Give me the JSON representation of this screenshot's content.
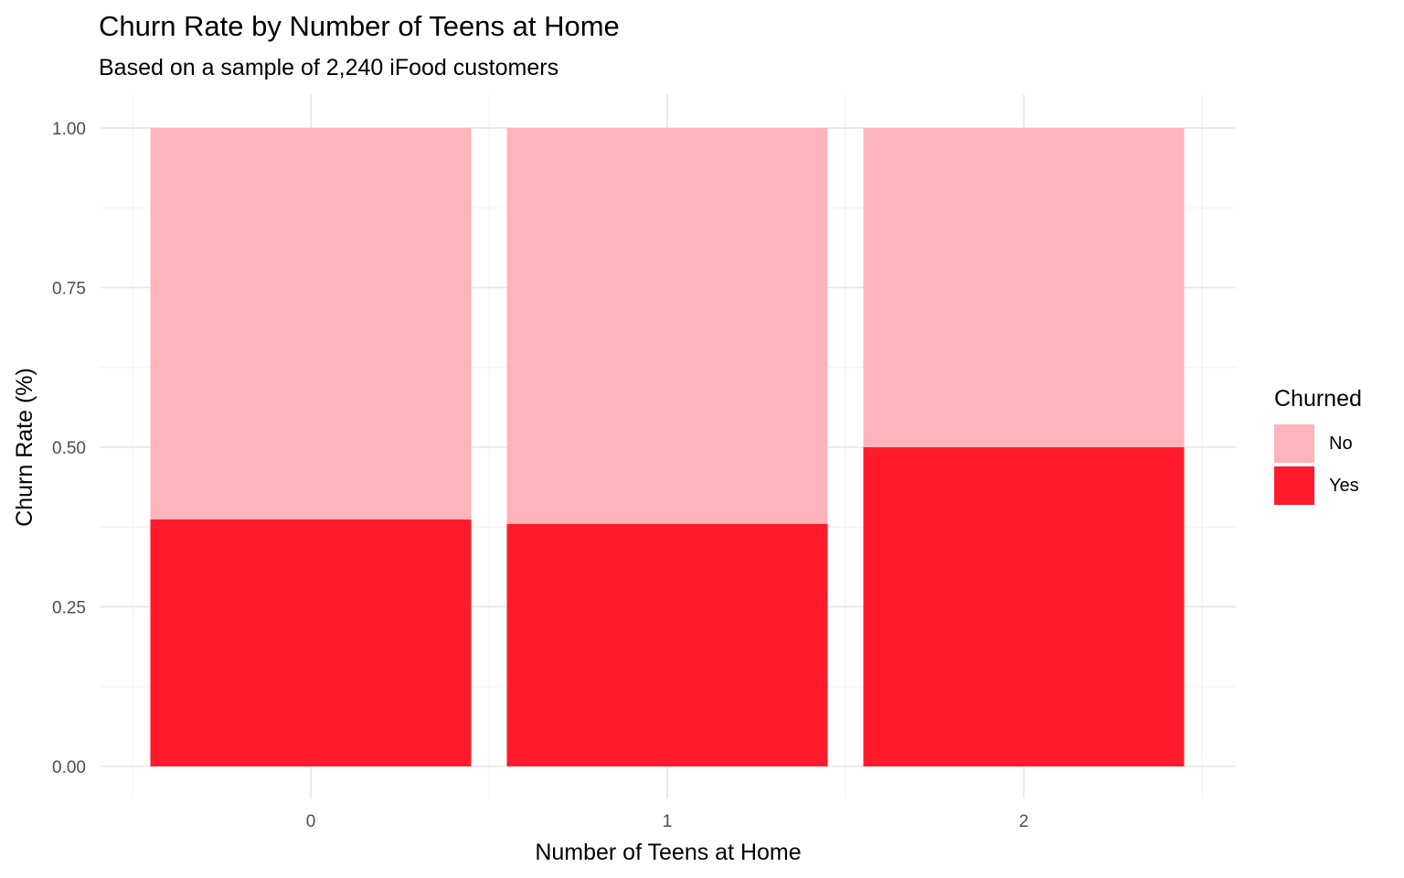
{
  "chart_data": {
    "type": "bar",
    "stacked": true,
    "title": "Churn Rate by Number of Teens at Home",
    "subtitle": "Based on a sample of 2,240 iFood customers",
    "xlabel": "Number of Teens at Home",
    "ylabel": "Churn Rate (%)",
    "categories": [
      "0",
      "1",
      "2"
    ],
    "series": [
      {
        "name": "No",
        "color": "#FFB3BA",
        "values": [
          0.613,
          0.62,
          0.5
        ]
      },
      {
        "name": "Yes",
        "color": "#FF1A2C",
        "values": [
          0.387,
          0.38,
          0.5
        ]
      }
    ],
    "ylim": [
      0,
      1
    ],
    "yticks": [
      "0.00",
      "0.25",
      "0.50",
      "0.75",
      "1.00"
    ],
    "grid": true,
    "legend": {
      "title": "Churned",
      "position": "right"
    }
  }
}
